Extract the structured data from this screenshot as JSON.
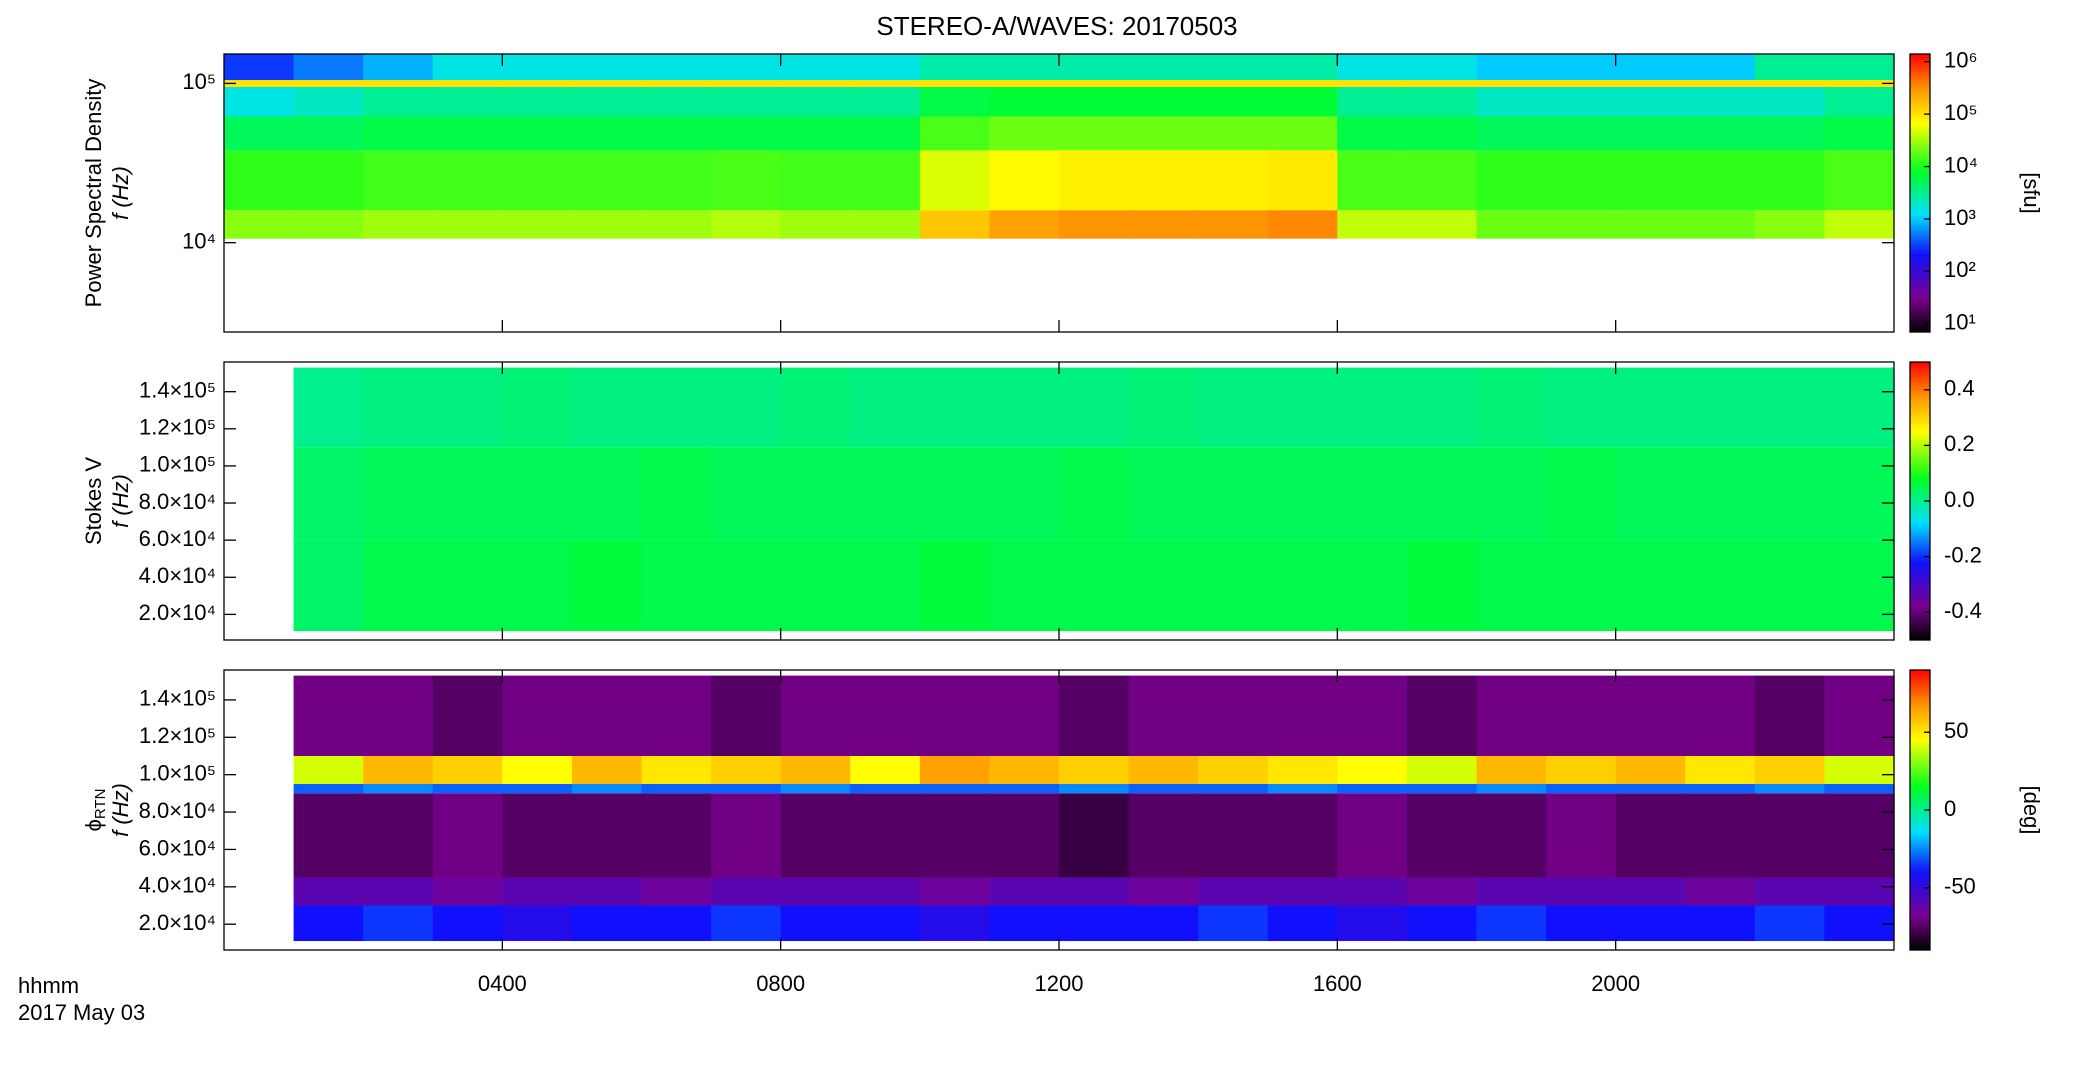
{
  "chart_data": [
    {
      "type": "heatmap",
      "title": "STEREO-A/WAVES: 20170503",
      "quantity": "Power Spectral Density",
      "ylabel": "f (Hz)",
      "colorbar_label": "[sfu]",
      "colormap": "rainbow",
      "xlim": [
        0,
        24
      ],
      "ylim": [
        2750,
        153000
      ],
      "log_y": true,
      "yticks": [
        {
          "value": 10000,
          "label": "10⁴"
        },
        {
          "value": 100000,
          "label": "10⁵"
        }
      ],
      "zlim": [
        7,
        1400000
      ],
      "log_z": true,
      "zticks": [
        {
          "value": 10,
          "label": "10¹"
        },
        {
          "value": 100,
          "label": "10²"
        },
        {
          "value": 1000,
          "label": "10³"
        },
        {
          "value": 10000,
          "label": "10⁴"
        },
        {
          "value": 100000,
          "label": "10⁵"
        },
        {
          "value": 1000000,
          "label": "10⁶"
        }
      ],
      "x_bins": [
        0,
        1,
        2,
        3,
        4,
        5,
        6,
        7,
        8,
        9,
        10,
        11,
        12,
        13,
        14,
        15,
        16,
        17,
        18,
        19,
        20,
        21,
        22,
        23,
        24
      ],
      "y_bins": [
        10600,
        16000,
        38000,
        62000,
        95000,
        105000,
        153000
      ],
      "z": [
        [
          25000,
          25000,
          30000,
          30000,
          30000,
          30000,
          30000,
          35000,
          30000,
          30000,
          150000,
          250000,
          300000,
          300000,
          300000,
          350000,
          40000,
          40000,
          20000,
          20000,
          20000,
          20000,
          25000,
          40000
        ],
        [
          12000,
          12000,
          14000,
          14000,
          14000,
          14000,
          14000,
          15000,
          14000,
          14000,
          50000,
          70000,
          80000,
          80000,
          80000,
          90000,
          15000,
          15000,
          12000,
          12000,
          12000,
          12000,
          12000,
          15000
        ],
        [
          5000,
          5000,
          6000,
          6000,
          6000,
          6000,
          6000,
          6000,
          6000,
          6000,
          15000,
          20000,
          20000,
          20000,
          20000,
          20000,
          6000,
          6000,
          5000,
          5000,
          5000,
          5000,
          5000,
          6000
        ],
        [
          1500,
          2000,
          3000,
          3000,
          3000,
          3000,
          3000,
          3000,
          3000,
          3000,
          6000,
          7000,
          7000,
          7000,
          7000,
          7000,
          3000,
          3000,
          2000,
          2000,
          2000,
          2000,
          2000,
          3000
        ],
        [
          100000,
          100000,
          100000,
          100000,
          100000,
          100000,
          100000,
          100000,
          100000,
          100000,
          100000,
          100000,
          100000,
          100000,
          100000,
          100000,
          100000,
          100000,
          100000,
          100000,
          100000,
          100000,
          100000,
          100000
        ],
        [
          300,
          500,
          800,
          1500,
          1500,
          1500,
          1500,
          1500,
          1500,
          1500,
          2500,
          2500,
          2500,
          2500,
          2500,
          2500,
          1500,
          1500,
          1000,
          1000,
          1000,
          1000,
          3000,
          3000
        ]
      ]
    },
    {
      "type": "heatmap",
      "quantity": "Stokes V",
      "ylabel": "f (Hz)",
      "colormap": "rainbow",
      "xlim": [
        0,
        24
      ],
      "ylim": [
        6200,
        156000
      ],
      "log_y": false,
      "yticks": [
        {
          "value": 20000,
          "label": "2.0×10⁴"
        },
        {
          "value": 40000,
          "label": "4.0×10⁴"
        },
        {
          "value": 60000,
          "label": "6.0×10⁴"
        },
        {
          "value": 80000,
          "label": "8.0×10⁴"
        },
        {
          "value": 100000,
          "label": "1.0×10⁵"
        },
        {
          "value": 120000,
          "label": "1.2×10⁵"
        },
        {
          "value": 140000,
          "label": "1.4×10⁵"
        }
      ],
      "zlim": [
        -0.5,
        0.5
      ],
      "log_z": false,
      "zticks": [
        -0.4,
        -0.2,
        {
          "value": 0,
          "label": "0.0"
        },
        0.2,
        0.4
      ],
      "x_bins": [
        0,
        1,
        2,
        3,
        4,
        5,
        6,
        7,
        8,
        9,
        10,
        11,
        12,
        13,
        14,
        15,
        16,
        17,
        18,
        19,
        20,
        21,
        22,
        23,
        24
      ],
      "y_bins": [
        11000,
        60000,
        110000,
        153000
      ],
      "z": [
        [
          null,
          0.03,
          0.05,
          0.05,
          0.05,
          0.06,
          0.05,
          0.05,
          0.05,
          0.05,
          0.06,
          0.05,
          0.05,
          0.05,
          0.05,
          0.05,
          0.05,
          0.06,
          0.05,
          0.05,
          0.05,
          0.05,
          0.05,
          0.05
        ],
        [
          null,
          0.03,
          0.04,
          0.04,
          0.04,
          0.04,
          0.05,
          0.04,
          0.04,
          0.04,
          0.04,
          0.04,
          0.05,
          0.04,
          0.04,
          0.04,
          0.04,
          0.04,
          0.04,
          0.05,
          0.04,
          0.04,
          0.04,
          0.04
        ],
        [
          null,
          0.0,
          0.01,
          0.01,
          0.02,
          0.01,
          0.01,
          0.01,
          0.02,
          0.01,
          0.01,
          0.01,
          0.01,
          0.02,
          0.01,
          0.01,
          0.01,
          0.01,
          0.02,
          0.01,
          0.01,
          0.01,
          0.01,
          0.01
        ]
      ]
    },
    {
      "type": "heatmap",
      "quantity": "ϕ",
      "quantity_sub": "RTN",
      "ylabel": "f (Hz)",
      "colorbar_label": "[deg]",
      "colormap": "rainbow",
      "xlabel": "hhmm",
      "date_label": "2017 May 03",
      "xlim": [
        0,
        24
      ],
      "xticks": [
        {
          "value": 4,
          "label": "0400"
        },
        {
          "value": 8,
          "label": "0800"
        },
        {
          "value": 12,
          "label": "1200"
        },
        {
          "value": 16,
          "label": "1600"
        },
        {
          "value": 20,
          "label": "2000"
        }
      ],
      "ylim": [
        6200,
        156000
      ],
      "log_y": false,
      "yticks": [
        {
          "value": 20000,
          "label": "2.0×10⁴"
        },
        {
          "value": 40000,
          "label": "4.0×10⁴"
        },
        {
          "value": 60000,
          "label": "6.0×10⁴"
        },
        {
          "value": 80000,
          "label": "8.0×10⁴"
        },
        {
          "value": 100000,
          "label": "1.0×10⁵"
        },
        {
          "value": 120000,
          "label": "1.2×10⁵"
        },
        {
          "value": 140000,
          "label": "1.4×10⁵"
        }
      ],
      "zlim": [
        -90,
        90
      ],
      "log_z": false,
      "zticks": [
        -50,
        0,
        50
      ],
      "x_bins": [
        0,
        1,
        2,
        3,
        4,
        5,
        6,
        7,
        8,
        9,
        10,
        11,
        12,
        13,
        14,
        15,
        16,
        17,
        18,
        19,
        20,
        21,
        22,
        23,
        24
      ],
      "y_bins": [
        11000,
        30000,
        45000,
        90000,
        95000,
        110000,
        153000
      ],
      "z": [
        [
          null,
          -40,
          -35,
          -40,
          -45,
          -40,
          -40,
          -35,
          -40,
          -40,
          -45,
          -40,
          -40,
          -40,
          -35,
          -40,
          -45,
          -40,
          -35,
          -40,
          -40,
          -40,
          -35,
          -40
        ],
        [
          null,
          -60,
          -60,
          -65,
          -60,
          -60,
          -65,
          -60,
          -60,
          -60,
          -65,
          -60,
          -60,
          -65,
          -60,
          -60,
          -60,
          -65,
          -60,
          -60,
          -60,
          -65,
          -60,
          -60
        ],
        [
          null,
          -75,
          -75,
          -70,
          -75,
          -75,
          -75,
          -70,
          -75,
          -75,
          -75,
          -75,
          -80,
          -75,
          -75,
          -75,
          -70,
          -75,
          -75,
          -70,
          -75,
          -75,
          -75,
          -75
        ],
        [
          null,
          -30,
          -25,
          -30,
          -30,
          -25,
          -30,
          -30,
          -25,
          -30,
          -30,
          -30,
          -25,
          -30,
          -30,
          -25,
          -30,
          -30,
          -25,
          -30,
          -30,
          -30,
          -25,
          -30
        ],
        [
          null,
          40,
          60,
          55,
          45,
          60,
          50,
          55,
          60,
          45,
          65,
          60,
          55,
          60,
          55,
          50,
          45,
          40,
          60,
          55,
          60,
          50,
          55,
          40
        ],
        [
          null,
          -70,
          -70,
          -75,
          -70,
          -70,
          -70,
          -75,
          -70,
          -70,
          -70,
          -70,
          -75,
          -70,
          -70,
          -70,
          -70,
          -75,
          -70,
          -70,
          -70,
          -70,
          -75,
          -70
        ]
      ]
    }
  ]
}
